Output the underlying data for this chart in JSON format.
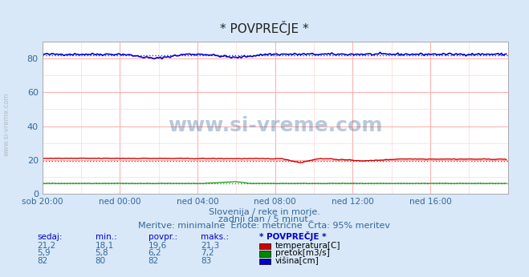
{
  "title": "* POVPREČJE *",
  "background_color": "#d8e8f8",
  "plot_bg_color": "#ffffff",
  "grid_color_major": "#ffaaaa",
  "grid_color_minor": "#ffcccc",
  "xlabel_ticks": [
    "sob 20:00",
    "ned 00:00",
    "ned 04:00",
    "ned 08:00",
    "ned 12:00",
    "ned 16:00"
  ],
  "ylabel_ticks": [
    0,
    20,
    40,
    60,
    80
  ],
  "ylim": [
    0,
    90
  ],
  "xlim": [
    0,
    288
  ],
  "temp_color": "#cc0000",
  "flow_color": "#008800",
  "height_color": "#0000cc",
  "temp_avg": 19.6,
  "flow_avg": 6.2,
  "height_avg": 82,
  "temp_min": 18.1,
  "temp_max": 21.3,
  "flow_min": 5.8,
  "flow_max": 7.2,
  "height_min": 80,
  "height_max": 83,
  "temp_now": 21.2,
  "flow_now": 5.9,
  "height_now": 82,
  "watermark": "www.si-vreme.com",
  "subtitle1": "Slovenija / reke in morje.",
  "subtitle2": "zadnji dan / 5 minut.",
  "subtitle3": "Meritve: minimalne  Enote: metrične  Črta: 95% meritev",
  "table_headers": [
    "sedaj:",
    "min.:",
    "povpr.:",
    "maks.:",
    "* POVPREČJE *"
  ],
  "table_rows": [
    [
      "21,2",
      "18,1",
      "19,6",
      "21,3",
      "temperatura[C]",
      "#cc0000"
    ],
    [
      "5,9",
      "5,8",
      "6,2",
      "7,2",
      "pretok[m3/s]",
      "#008800"
    ],
    [
      "82",
      "80",
      "82",
      "83",
      "višina[cm]",
      "#0000cc"
    ]
  ]
}
